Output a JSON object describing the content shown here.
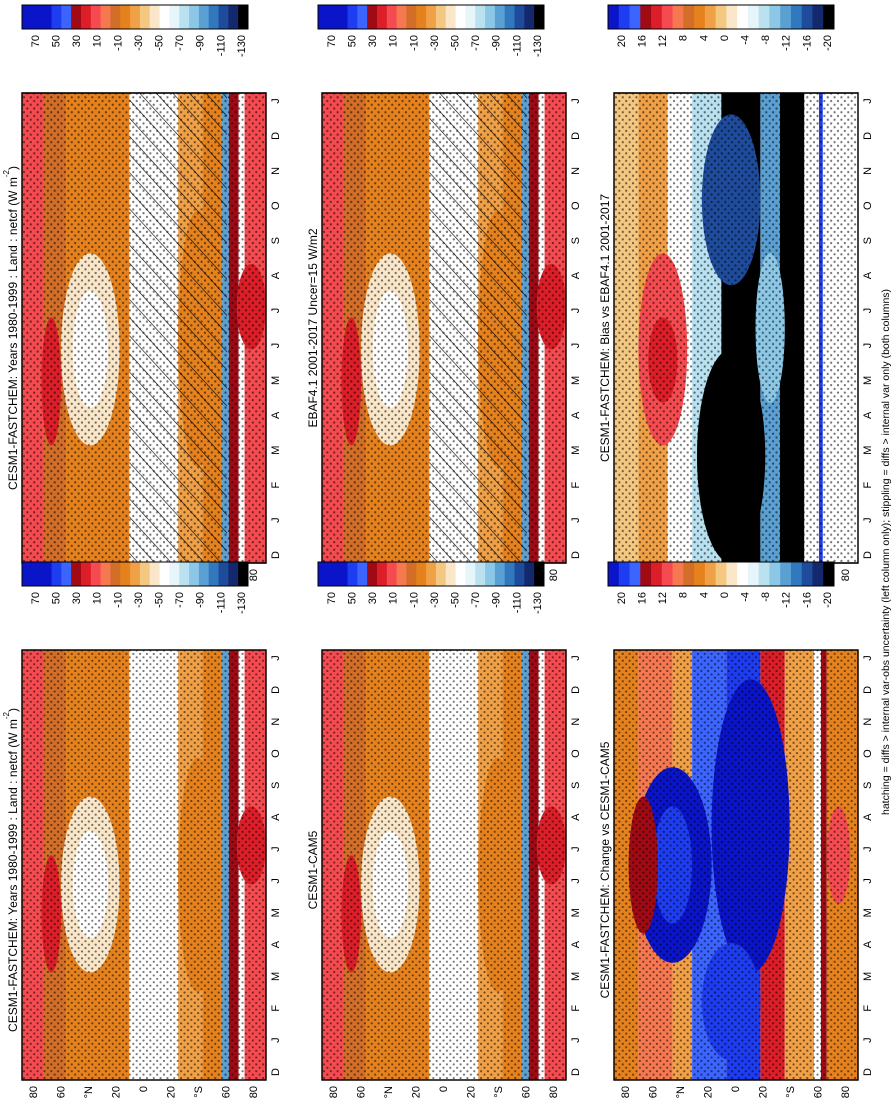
{
  "chart_data": [
    {
      "type": "heatmap",
      "title": "CESM1-FASTCHEM: Years 1980-1999 : Land : netcf (W m",
      "units_sup": "-2",
      "units_close": ")",
      "x_ticks": [
        "D",
        "J",
        "F",
        "M",
        "A",
        "M",
        "J",
        "J",
        "A",
        "S",
        "O",
        "N",
        "D",
        "J"
      ],
      "y_ticks": [
        "80",
        "60",
        "°N",
        "20",
        "0",
        "20",
        "°S",
        "60",
        "80"
      ],
      "colorbar_ticks": [
        "70",
        "50",
        "30",
        "10",
        "-10",
        "-30",
        "-50",
        "-70",
        "-90",
        "-110",
        "-130"
      ],
      "scale": "abs",
      "overlay": "hatch"
    },
    {
      "type": "heatmap",
      "title": "CESM1-FASTCHEM: Years 1980-1999 : Land : netcf (W m",
      "units_sup": "-2",
      "units_close": ")",
      "x_ticks": [
        "D",
        "J",
        "F",
        "M",
        "A",
        "M",
        "J",
        "J",
        "A",
        "S",
        "O",
        "N",
        "D",
        "J"
      ],
      "y_ticks": [
        "80",
        "60",
        "°N",
        "20",
        "0",
        "20",
        "°S",
        "60",
        "80"
      ],
      "colorbar_ticks": [
        "70",
        "50",
        "30",
        "10",
        "-10",
        "-30",
        "-50",
        "-70",
        "-90",
        "-110",
        "-130"
      ],
      "scale": "abs",
      "overlay": "stipple"
    },
    {
      "type": "heatmap",
      "title": "EBAF4.1 2001-2017 Uncer=15 W/m2",
      "units_sup": "",
      "units_close": "",
      "x_ticks": [
        "D",
        "J",
        "F",
        "M",
        "A",
        "M",
        "J",
        "J",
        "A",
        "S",
        "O",
        "N",
        "D",
        "J"
      ],
      "y_ticks": [
        "80",
        "60",
        "°N",
        "20",
        "0",
        "20",
        "°S",
        "60",
        "80"
      ],
      "colorbar_ticks": [
        "70",
        "50",
        "30",
        "10",
        "-10",
        "-30",
        "-50",
        "-70",
        "-90",
        "-110",
        "-130"
      ],
      "scale": "abs",
      "overlay": "hatch"
    },
    {
      "type": "heatmap",
      "title": "CESM1-CAM5",
      "units_sup": "",
      "units_close": "",
      "x_ticks": [
        "D",
        "J",
        "F",
        "M",
        "A",
        "M",
        "J",
        "J",
        "A",
        "S",
        "O",
        "N",
        "D",
        "J"
      ],
      "y_ticks": [
        "80",
        "60",
        "°N",
        "20",
        "0",
        "20",
        "°S",
        "60",
        "80"
      ],
      "colorbar_ticks": [
        "70",
        "50",
        "30",
        "10",
        "-10",
        "-30",
        "-50",
        "-70",
        "-90",
        "-110",
        "-130"
      ],
      "scale": "abs",
      "overlay": "stipple"
    },
    {
      "type": "heatmap",
      "title": "CESM1-FASTCHEM: Bias vs EBAF4.1 2001-2017",
      "units_sup": "",
      "units_close": "",
      "x_ticks": [
        "D",
        "J",
        "F",
        "M",
        "A",
        "M",
        "J",
        "J",
        "A",
        "S",
        "O",
        "N",
        "D",
        "J"
      ],
      "y_ticks": [
        "80",
        "60",
        "°N",
        "20",
        "0",
        "20",
        "°S",
        "60",
        "80"
      ],
      "colorbar_ticks": [
        "20",
        "16",
        "12",
        "8",
        "4",
        "0",
        "-4",
        "-8",
        "-12",
        "-16",
        "-20"
      ],
      "scale": "bias",
      "overlay": "stipple"
    },
    {
      "type": "heatmap",
      "title": "CESM1-FASTCHEM: Change vs CESM1-CAM5",
      "units_sup": "",
      "units_close": "",
      "x_ticks": [
        "D",
        "J",
        "F",
        "M",
        "A",
        "M",
        "J",
        "J",
        "A",
        "S",
        "O",
        "N",
        "D",
        "J"
      ],
      "y_ticks": [
        "80",
        "60",
        "°N",
        "20",
        "0",
        "20",
        "°S",
        "60",
        "80"
      ],
      "colorbar_ticks": [
        "20",
        "16",
        "12",
        "8",
        "4",
        "0",
        "-4",
        "-8",
        "-12",
        "-16",
        "-20"
      ],
      "scale": "change",
      "overlay": "stipple"
    }
  ],
  "footer": "hatching = diffs > internal var-obs uncertainty (left column only); stippling = diffs > internal var only (both columns)",
  "palette": [
    "#0a14c8",
    "#1e3cf0",
    "#3c64ff",
    "#a00a14",
    "#dc1e28",
    "#f54b50",
    "#f57850",
    "#d26e28",
    "#e6821e",
    "#f0a046",
    "#f5c882",
    "#fae6c8",
    "#ffffff",
    "#e6f5fa",
    "#b9e1f0",
    "#8cc8e6",
    "#5aa0d2",
    "#3278be",
    "#1e4b9b",
    "#14286e",
    "#000000"
  ]
}
